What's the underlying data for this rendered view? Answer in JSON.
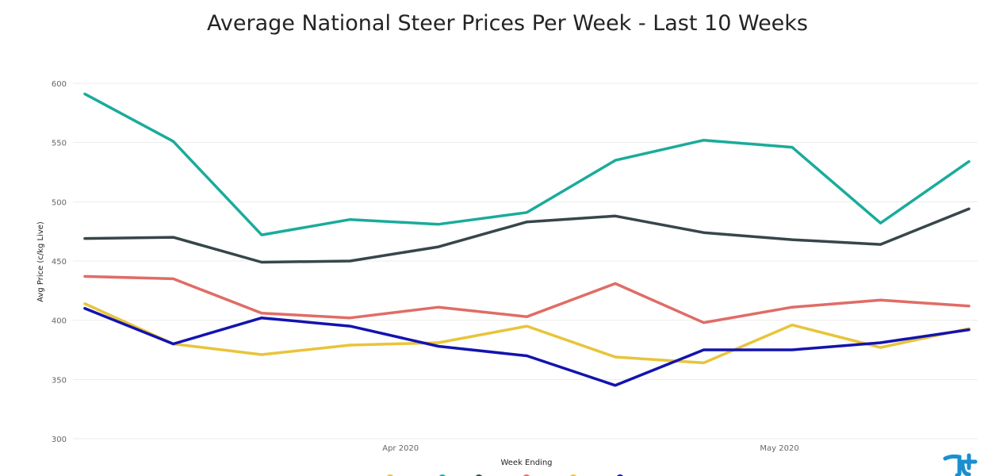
{
  "chart_data": {
    "type": "line",
    "title": "Average National Steer Prices Per Week - Last 10 Weeks",
    "xlabel": "Week Ending",
    "ylabel": "Avg Price (c/kg Live)",
    "ylim": [
      300,
      600
    ],
    "yticks": [
      300,
      350,
      400,
      450,
      500,
      550,
      600
    ],
    "x": [
      "2020-03-07",
      "2020-03-14",
      "2020-03-21",
      "2020-03-28",
      "2020-04-04",
      "2020-04-11",
      "2020-04-18",
      "2020-04-25",
      "2020-05-02",
      "2020-05-09",
      "2020-05-16"
    ],
    "xticks": [
      {
        "date": "2020-04-01",
        "label": "Apr 2020"
      },
      {
        "date": "2020-05-01",
        "label": "May 2020"
      }
    ],
    "grid": true,
    "legend": "bottom",
    "series": [
      {
        "color": "#1aab9b",
        "values": [
          591,
          551,
          472,
          485,
          481,
          491,
          535,
          552,
          546,
          482,
          534
        ]
      },
      {
        "color": "#374649",
        "values": [
          469,
          470,
          449,
          450,
          462,
          483,
          488,
          474,
          468,
          464,
          494
        ]
      },
      {
        "color": "#e06c66",
        "values": [
          437,
          435,
          406,
          402,
          411,
          403,
          431,
          398,
          411,
          417,
          412
        ]
      },
      {
        "color": "#e8c43a",
        "values": [
          414,
          380,
          371,
          379,
          381,
          395,
          369,
          364,
          396,
          377,
          393
        ]
      },
      {
        "color": "#1313b0",
        "values": [
          410,
          380,
          402,
          395,
          378,
          370,
          345,
          375,
          375,
          381,
          392
        ]
      }
    ]
  }
}
